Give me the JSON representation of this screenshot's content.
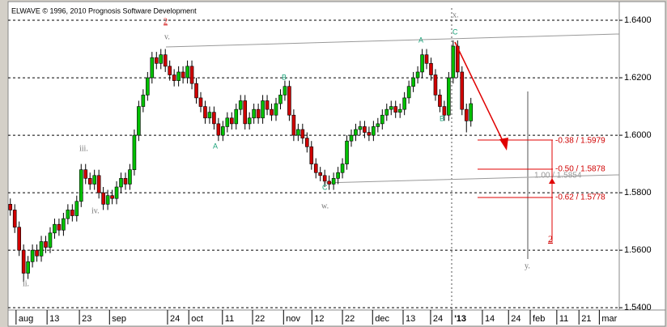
{
  "chart_data": {
    "type": "candlestick",
    "title": "ELWAVE © 1996, 2010 Prognosis Software Development",
    "up_color": "#00c000",
    "down_color": "#d00000",
    "open": [
      1.576,
      1.574,
      1.568,
      1.56,
      1.552,
      1.556,
      1.56,
      1.558,
      1.563,
      1.561,
      1.566,
      1.569,
      1.567,
      1.571,
      1.574,
      1.572,
      1.577,
      1.588,
      1.585,
      1.583,
      1.586,
      1.58,
      1.576,
      1.579,
      1.578,
      1.582,
      1.585,
      1.583,
      1.588,
      1.6,
      1.61,
      1.614,
      1.62,
      1.627,
      1.625,
      1.628,
      1.624,
      1.621,
      1.619,
      1.622,
      1.62,
      1.624,
      1.618,
      1.613,
      1.61,
      1.606,
      1.608,
      1.604,
      1.6,
      1.603,
      1.606,
      1.604,
      1.609,
      1.612,
      1.604,
      1.606,
      1.609,
      1.606,
      1.612,
      1.609,
      1.607,
      1.611,
      1.614,
      1.617,
      1.607,
      1.6,
      1.602,
      1.599,
      1.596,
      1.59,
      1.587,
      1.586,
      1.584,
      1.583,
      1.585,
      1.587,
      1.59,
      1.598,
      1.6,
      1.602,
      1.603,
      1.601,
      1.6,
      1.603,
      1.604,
      1.607,
      1.609,
      1.61,
      1.608,
      1.609,
      1.613,
      1.617,
      1.62,
      1.622,
      1.628,
      1.625,
      1.621,
      1.614,
      1.61,
      1.607,
      1.62,
      1.631,
      1.622,
      1.609,
      1.605
    ],
    "high": [
      1.578,
      1.576,
      1.57,
      1.562,
      1.558,
      1.562,
      1.562,
      1.565,
      1.565,
      1.568,
      1.571,
      1.571,
      1.573,
      1.576,
      1.576,
      1.579,
      1.59,
      1.59,
      1.587,
      1.588,
      1.588,
      1.582,
      1.581,
      1.581,
      1.584,
      1.587,
      1.587,
      1.59,
      1.602,
      1.612,
      1.616,
      1.622,
      1.629,
      1.629,
      1.63,
      1.63,
      1.626,
      1.623,
      1.624,
      1.624,
      1.626,
      1.626,
      1.62,
      1.615,
      1.612,
      1.61,
      1.61,
      1.606,
      1.605,
      1.608,
      1.608,
      1.611,
      1.614,
      1.614,
      1.608,
      1.611,
      1.611,
      1.614,
      1.614,
      1.611,
      1.613,
      1.616,
      1.619,
      1.619,
      1.609,
      1.604,
      1.604,
      1.601,
      1.598,
      1.592,
      1.589,
      1.588,
      1.586,
      1.587,
      1.589,
      1.592,
      1.6,
      1.602,
      1.604,
      1.605,
      1.605,
      1.603,
      1.605,
      1.606,
      1.609,
      1.611,
      1.612,
      1.612,
      1.611,
      1.615,
      1.619,
      1.622,
      1.624,
      1.63,
      1.63,
      1.627,
      1.623,
      1.616,
      1.612,
      1.622,
      1.633,
      1.633,
      1.624,
      1.611,
      1.613
    ],
    "low": [
      1.572,
      1.566,
      1.558,
      1.549,
      1.55,
      1.554,
      1.556,
      1.556,
      1.559,
      1.559,
      1.564,
      1.565,
      1.565,
      1.569,
      1.57,
      1.57,
      1.575,
      1.583,
      1.581,
      1.581,
      1.578,
      1.574,
      1.574,
      1.576,
      1.576,
      1.58,
      1.581,
      1.581,
      1.586,
      1.598,
      1.608,
      1.612,
      1.618,
      1.623,
      1.623,
      1.622,
      1.619,
      1.617,
      1.617,
      1.618,
      1.618,
      1.616,
      1.611,
      1.608,
      1.604,
      1.604,
      1.602,
      1.598,
      1.598,
      1.601,
      1.602,
      1.602,
      1.607,
      1.602,
      1.602,
      1.604,
      1.604,
      1.604,
      1.607,
      1.605,
      1.605,
      1.609,
      1.612,
      1.605,
      1.598,
      1.598,
      1.597,
      1.594,
      1.588,
      1.585,
      1.584,
      1.582,
      1.581,
      1.581,
      1.583,
      1.585,
      1.588,
      1.596,
      1.598,
      1.6,
      1.599,
      1.598,
      1.598,
      1.601,
      1.602,
      1.605,
      1.607,
      1.606,
      1.606,
      1.607,
      1.611,
      1.615,
      1.618,
      1.62,
      1.623,
      1.619,
      1.612,
      1.608,
      1.605,
      1.605,
      1.618,
      1.62,
      1.607,
      1.601,
      1.603
    ],
    "close": [
      1.574,
      1.568,
      1.56,
      1.552,
      1.556,
      1.56,
      1.558,
      1.563,
      1.561,
      1.566,
      1.569,
      1.567,
      1.571,
      1.574,
      1.572,
      1.577,
      1.588,
      1.585,
      1.583,
      1.586,
      1.58,
      1.576,
      1.579,
      1.578,
      1.582,
      1.585,
      1.583,
      1.588,
      1.6,
      1.61,
      1.614,
      1.62,
      1.627,
      1.625,
      1.628,
      1.624,
      1.621,
      1.619,
      1.622,
      1.62,
      1.624,
      1.618,
      1.613,
      1.61,
      1.606,
      1.608,
      1.604,
      1.6,
      1.603,
      1.606,
      1.604,
      1.609,
      1.612,
      1.604,
      1.606,
      1.609,
      1.606,
      1.612,
      1.609,
      1.607,
      1.611,
      1.614,
      1.617,
      1.607,
      1.6,
      1.602,
      1.599,
      1.596,
      1.59,
      1.587,
      1.586,
      1.584,
      1.583,
      1.585,
      1.587,
      1.59,
      1.598,
      1.6,
      1.602,
      1.603,
      1.601,
      1.6,
      1.603,
      1.604,
      1.607,
      1.609,
      1.61,
      1.608,
      1.609,
      1.613,
      1.617,
      1.62,
      1.622,
      1.628,
      1.625,
      1.621,
      1.614,
      1.61,
      1.607,
      1.62,
      1.631,
      1.622,
      1.609,
      1.605,
      1.611
    ],
    "xlim": [
      0,
      138
    ],
    "xticks": [
      {
        "value": 1.8,
        "label": "aug"
      },
      {
        "value": 8.8,
        "label": "13"
      },
      {
        "value": 16.1,
        "label": "23"
      },
      {
        "value": 22.9,
        "label": "sep"
      },
      {
        "value": 36,
        "label": "24"
      },
      {
        "value": 40.8,
        "label": "oct"
      },
      {
        "value": 48.4,
        "label": "11"
      },
      {
        "value": 55.2,
        "label": "22"
      },
      {
        "value": 62.2,
        "label": "nov"
      },
      {
        "value": 68.6,
        "label": "12"
      },
      {
        "value": 75.5,
        "label": "22"
      },
      {
        "value": 82.3,
        "label": "dec"
      },
      {
        "value": 89.2,
        "label": "13"
      },
      {
        "value": 95.4,
        "label": "24"
      },
      {
        "value": 100.2,
        "label": "'13"
      },
      {
        "value": 107.1,
        "label": "14"
      },
      {
        "value": 113,
        "label": "24"
      },
      {
        "value": 117.9,
        "label": "feb"
      },
      {
        "value": 123.9,
        "label": "11"
      },
      {
        "value": 128.9,
        "label": "21"
      },
      {
        "value": 133.5,
        "label": "mar"
      }
    ],
    "ylim": [
      1.5392,
      1.6448
    ],
    "yticks": [
      {
        "value": 1.54,
        "label": "1.5400"
      },
      {
        "value": 1.56,
        "label": "1.5600"
      },
      {
        "value": 1.58,
        "label": "1.5800"
      },
      {
        "value": 1.6,
        "label": "1.6000"
      },
      {
        "value": 1.62,
        "label": "1.6200"
      },
      {
        "value": 1.64,
        "label": "1.6400"
      }
    ],
    "grid": true,
    "annotations": [
      "ii.",
      "iii.",
      "iv.",
      "v.",
      "2",
      "A",
      "B",
      "C",
      "w.",
      "A",
      "B",
      "C",
      "x.",
      "y.",
      "2"
    ],
    "targets": [
      "-0.38 / 1.5979",
      "-0.50 / 1.5878",
      "-0.62 / 1.5778",
      "1.00 / 1.5854"
    ]
  }
}
